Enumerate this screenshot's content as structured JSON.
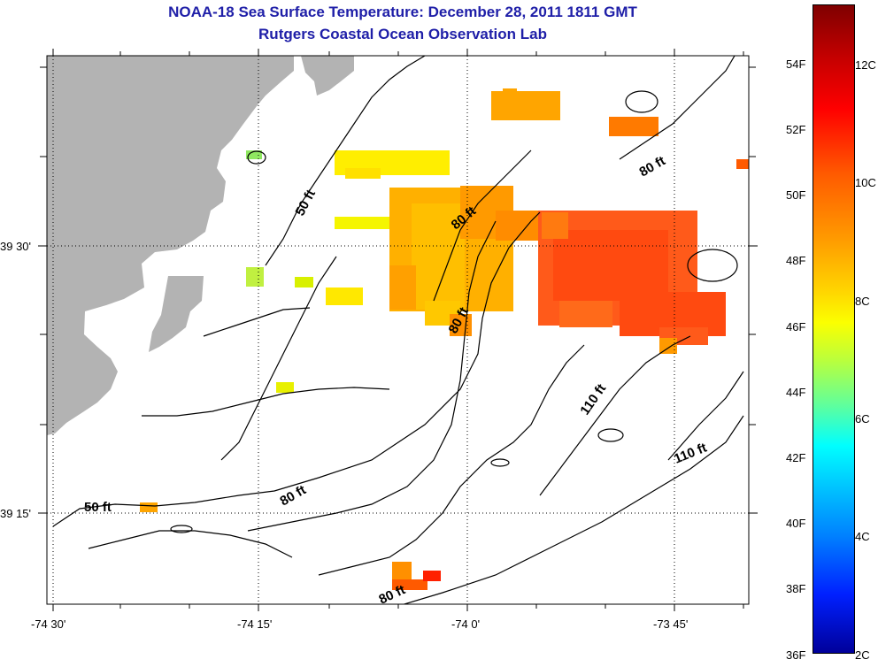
{
  "title": {
    "line1": "NOAA-18 Sea Surface Temperature:  December 28, 2011 1811 GMT",
    "line2": "Rutgers Coastal Ocean Observation Lab"
  },
  "axes": {
    "x_ticks": [
      "-74 30'",
      "-74 15'",
      "-74 0'",
      "-73 45'"
    ],
    "y_ticks": [
      "39 30'",
      "39 15'"
    ]
  },
  "colorbar": {
    "fahrenheit": [
      "54F",
      "52F",
      "50F",
      "48F",
      "46F",
      "44F",
      "42F",
      "40F",
      "38F",
      "36F"
    ],
    "celsius": [
      "12C",
      "10C",
      "8C",
      "6C",
      "4C",
      "2C"
    ],
    "range_f": [
      36,
      55.4
    ],
    "range_c": [
      2,
      13
    ]
  },
  "contour_labels": [
    "50 ft",
    "50 ft",
    "80 ft",
    "80 ft",
    "80 ft",
    "80 ft",
    "80 ft",
    "110 ft",
    "110 ft"
  ],
  "colors": {
    "title": "#1f1fa8",
    "land": "#b3b3b3",
    "no_data": "#ffffff"
  }
}
